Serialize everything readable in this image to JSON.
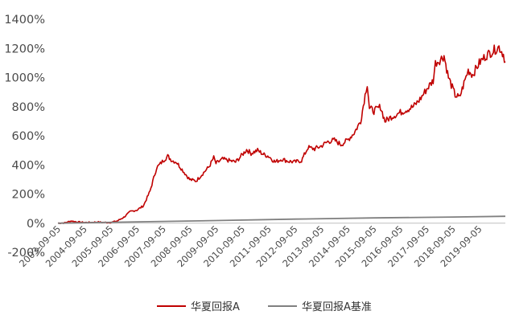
{
  "chart_data": {
    "type": "line",
    "title": "",
    "xlabel": "",
    "ylabel": "",
    "ylim": [
      -200,
      1400
    ],
    "y_tick_labels": [
      "-200%",
      "0%",
      "200%",
      "400%",
      "600%",
      "800%",
      "1000%",
      "1200%",
      "1400%"
    ],
    "y_ticks": [
      -200,
      0,
      200,
      400,
      600,
      800,
      1000,
      1200,
      1400
    ],
    "x_tick_labels": [
      "2003-09-05",
      "2004-09-05",
      "2005-09-05",
      "2006-09-05",
      "2007-09-05",
      "2008-09-05",
      "2009-09-05",
      "2010-09-05",
      "2011-09-05",
      "2012-09-05",
      "2013-09-05",
      "2014-09-05",
      "2015-09-05",
      "2016-09-05",
      "2017-09-05",
      "2018-09-05",
      "2019-09-05"
    ],
    "xlim": [
      "2003-09-05",
      "2020-09-01"
    ],
    "grid": false,
    "legend_position": "bottom",
    "series": [
      {
        "name": "华夏回报A",
        "color": "#c00000",
        "points": [
          [
            "2003-09-05",
            0
          ],
          [
            "2003-12-05",
            2
          ],
          [
            "2004-03-05",
            15
          ],
          [
            "2004-06-05",
            8
          ],
          [
            "2004-09-05",
            5
          ],
          [
            "2004-12-05",
            5
          ],
          [
            "2005-03-05",
            8
          ],
          [
            "2005-06-05",
            5
          ],
          [
            "2005-09-05",
            5
          ],
          [
            "2005-12-05",
            15
          ],
          [
            "2006-03-05",
            40
          ],
          [
            "2006-06-05",
            80
          ],
          [
            "2006-09-05",
            90
          ],
          [
            "2006-12-05",
            120
          ],
          [
            "2007-03-05",
            220
          ],
          [
            "2007-06-05",
            380
          ],
          [
            "2007-09-05",
            430
          ],
          [
            "2007-11-05",
            460
          ],
          [
            "2008-01-05",
            430
          ],
          [
            "2008-03-05",
            420
          ],
          [
            "2008-06-05",
            360
          ],
          [
            "2008-09-05",
            300
          ],
          [
            "2008-12-05",
            290
          ],
          [
            "2009-03-05",
            340
          ],
          [
            "2009-06-05",
            390
          ],
          [
            "2009-08-05",
            450
          ],
          [
            "2009-09-05",
            410
          ],
          [
            "2009-12-05",
            440
          ],
          [
            "2010-03-05",
            430
          ],
          [
            "2010-06-05",
            420
          ],
          [
            "2010-09-05",
            470
          ],
          [
            "2010-11-05",
            505
          ],
          [
            "2011-01-05",
            480
          ],
          [
            "2011-04-05",
            500
          ],
          [
            "2011-07-05",
            470
          ],
          [
            "2011-09-05",
            460
          ],
          [
            "2011-12-05",
            420
          ],
          [
            "2012-03-05",
            440
          ],
          [
            "2012-06-05",
            425
          ],
          [
            "2012-09-05",
            420
          ],
          [
            "2012-12-05",
            430
          ],
          [
            "2013-03-05",
            520
          ],
          [
            "2013-06-05",
            510
          ],
          [
            "2013-09-05",
            530
          ],
          [
            "2013-12-05",
            560
          ],
          [
            "2014-03-05",
            570
          ],
          [
            "2014-06-05",
            540
          ],
          [
            "2014-09-05",
            570
          ],
          [
            "2014-12-05",
            620
          ],
          [
            "2015-03-05",
            700
          ],
          [
            "2015-05-05",
            880
          ],
          [
            "2015-06-05",
            960
          ],
          [
            "2015-07-05",
            790
          ],
          [
            "2015-09-05",
            770
          ],
          [
            "2015-12-05",
            800
          ],
          [
            "2016-02-05",
            700
          ],
          [
            "2016-05-05",
            730
          ],
          [
            "2016-09-05",
            760
          ],
          [
            "2016-12-05",
            780
          ],
          [
            "2017-03-05",
            800
          ],
          [
            "2017-06-05",
            850
          ],
          [
            "2017-09-05",
            920
          ],
          [
            "2017-12-05",
            980
          ],
          [
            "2018-01-05",
            1100
          ],
          [
            "2018-03-05",
            1120
          ],
          [
            "2018-05-05",
            1150
          ],
          [
            "2018-07-05",
            1000
          ],
          [
            "2018-10-05",
            880
          ],
          [
            "2018-12-05",
            860
          ],
          [
            "2019-02-05",
            960
          ],
          [
            "2019-04-05",
            1050
          ],
          [
            "2019-06-05",
            1020
          ],
          [
            "2019-09-05",
            1100
          ],
          [
            "2019-12-05",
            1150
          ],
          [
            "2020-03-05",
            1180
          ],
          [
            "2020-06-05",
            1210
          ],
          [
            "2020-08-05",
            1160
          ],
          [
            "2020-09-01",
            1110
          ]
        ]
      },
      {
        "name": "华夏回报A基准",
        "color": "#808080",
        "points": [
          [
            "2003-09-05",
            0
          ],
          [
            "2006-09-05",
            9
          ],
          [
            "2009-09-05",
            18
          ],
          [
            "2012-09-05",
            28
          ],
          [
            "2015-09-05",
            36
          ],
          [
            "2018-09-05",
            42
          ],
          [
            "2020-09-01",
            47
          ]
        ]
      }
    ]
  }
}
